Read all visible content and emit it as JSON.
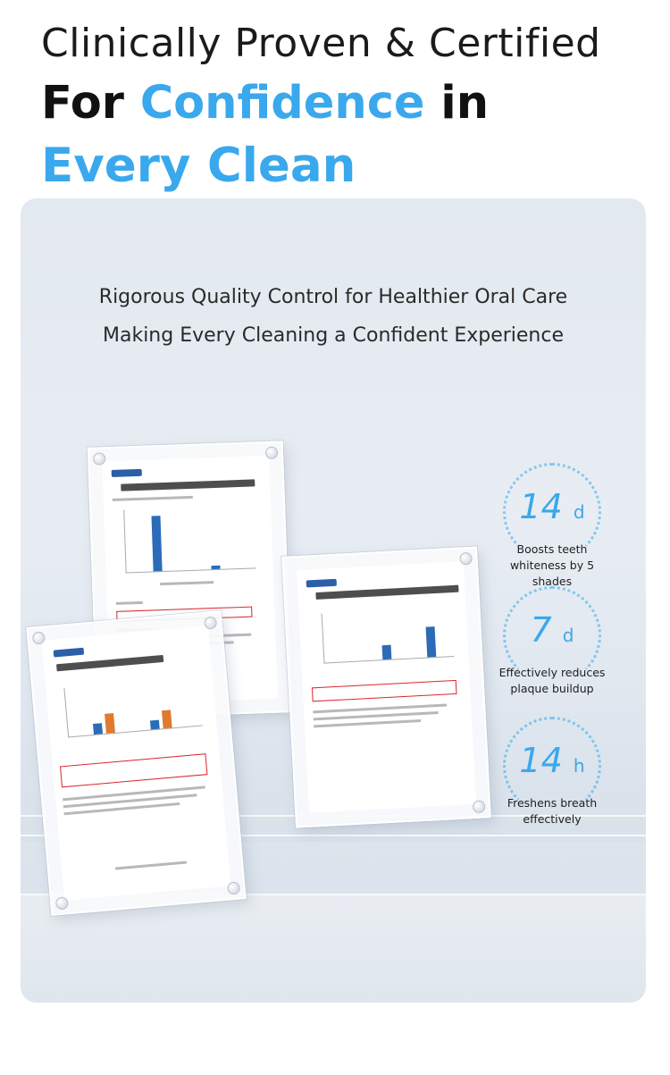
{
  "header": {
    "line1": "Clinically Proven & Certified",
    "line2_prefix": "For ",
    "line2_accent": "Confidence",
    "line2_suffix": " in",
    "line3": "Every Clean"
  },
  "subtitle": {
    "line1": "Rigorous Quality Control for Healthier Oral Care",
    "line2": "Making Every Cleaning a Confident Experience"
  },
  "badges": [
    {
      "value": "14",
      "unit": "d",
      "caption": "Boosts teeth whiteness by 5 shades"
    },
    {
      "value": "7",
      "unit": "d",
      "caption": "Effectively reduces plaque buildup"
    },
    {
      "value": "14",
      "unit": "h",
      "caption": "Freshens breath effectively"
    }
  ],
  "colors": {
    "accent": "#3aa8ec",
    "text": "#1b1b1b"
  }
}
